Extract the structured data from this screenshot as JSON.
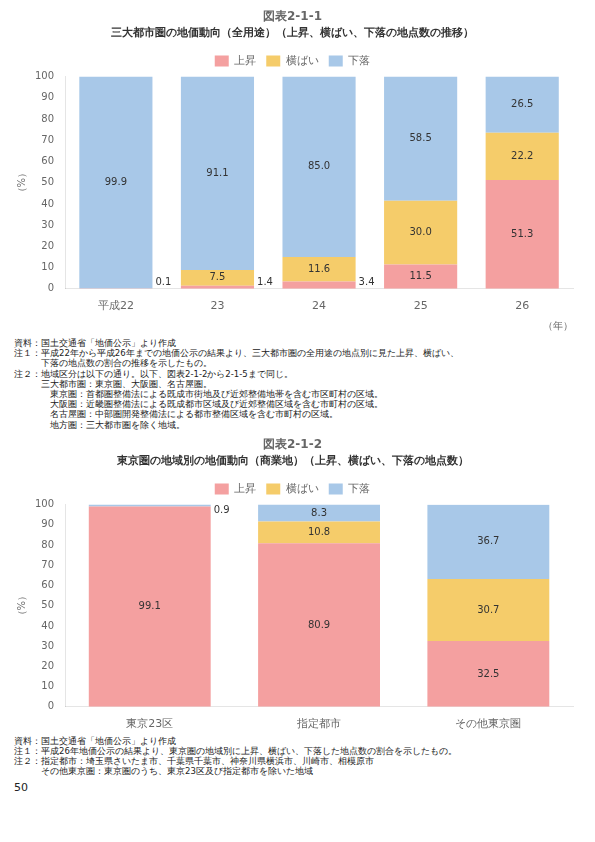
{
  "chart_data": [
    {
      "type": "bar",
      "title": "図表2-1-1",
      "subtitle": "三大都市圏の地価動向（全用途）（上昇、横ばい、下落の地点数の推移）",
      "categories": [
        "平成22",
        "23",
        "24",
        "25",
        "26"
      ],
      "xlabel": "（年）",
      "ylabel": "（%）",
      "series": [
        {
          "name": "上昇",
          "color": "#F4A0A0",
          "values": [
            0.1,
            1.4,
            3.4,
            11.5,
            51.3
          ],
          "value_labels": [
            "0.1",
            "1.4",
            "3.4",
            "11.5",
            "51.3"
          ]
        },
        {
          "name": "横ばい",
          "color": "#F5CC6A",
          "values": [
            0.0,
            7.5,
            11.6,
            30.0,
            22.2
          ],
          "value_labels": [
            null,
            "7.5",
            "11.6",
            "30.0",
            "22.2"
          ]
        },
        {
          "name": "下落",
          "color": "#A8C8E8",
          "values": [
            99.9,
            91.1,
            85.0,
            58.5,
            26.5
          ],
          "value_labels": [
            "99.9",
            "91.1",
            "85.0",
            "58.5",
            "26.5"
          ]
        }
      ],
      "stacked": true,
      "data_labels": true,
      "legend": "top",
      "grid": false,
      "ylim": [
        0,
        100
      ],
      "yticks": [
        0,
        10,
        20,
        30,
        40,
        50,
        60,
        70,
        80,
        90,
        100
      ],
      "annotations": [
        "資料：国土交通省「地価公示」より作成",
        "注１：平成22年から平成26年までの地価公示の結果より、三大都市圏の全用途の地点別に見た上昇、横ばい、",
        "　　　下落の地点数の割合の推移を示したもの。",
        "注２：地域区分は以下の通り。以下、図表2-1-2から2-1-5まで同じ。",
        "　　　三大都市圏：東京圏、大阪圏、名古屋圏。",
        "　　　　東京圏：首都圏整備法による既成市街地及び近郊整備地帯を含む市区町村の区域。",
        "　　　　大阪圏：近畿圏整備法による既成都市区域及び近郊整備区域を含む市町村の区域。",
        "　　　　名古屋圏：中部圏開発整備法による都市整備区域を含む市町村の区域。",
        "　　　　地方圏：三大都市圏を除く地域。"
      ]
    },
    {
      "type": "bar",
      "title": "図表2-1-2",
      "subtitle": "東京圏の地域別の地価動向（商業地）（上昇、横ばい、下落の地点数）",
      "categories": [
        "東京23区",
        "指定都市",
        "その他東京圏"
      ],
      "ylabel": "（%）",
      "series": [
        {
          "name": "上昇",
          "color": "#F4A0A0",
          "values": [
            99.1,
            80.9,
            32.5
          ],
          "value_labels": [
            "99.1",
            "80.9",
            "32.5"
          ]
        },
        {
          "name": "横ばい",
          "color": "#F5CC6A",
          "values": [
            0.0,
            10.8,
            30.7
          ],
          "value_labels": [
            null,
            "10.8",
            "30.7"
          ]
        },
        {
          "name": "下落",
          "color": "#A8C8E8",
          "values": [
            0.9,
            8.3,
            36.7
          ],
          "value_labels": [
            "0.9",
            "8.3",
            "36.7"
          ]
        }
      ],
      "stacked": true,
      "data_labels": true,
      "legend": "top",
      "grid": false,
      "ylim": [
        0,
        100
      ],
      "yticks": [
        0,
        10,
        20,
        30,
        40,
        50,
        60,
        70,
        80,
        90,
        100
      ],
      "annotations": [
        "資料：国土交通省「地価公示」より作成",
        "注１：平成26年地価公示の結果より、東京圏の地域別に上昇、横ばい、下落した地点数の割合を示したもの。",
        "注２：指定都市：埼玉県さいたま市、千葉県千葉市、神奈川県横浜市、川崎市、相模原市",
        "　　　その他東京圏：東京圏のうち、東京23区及び指定都市を除いた地域"
      ]
    }
  ],
  "annotations": [
    "50"
  ]
}
